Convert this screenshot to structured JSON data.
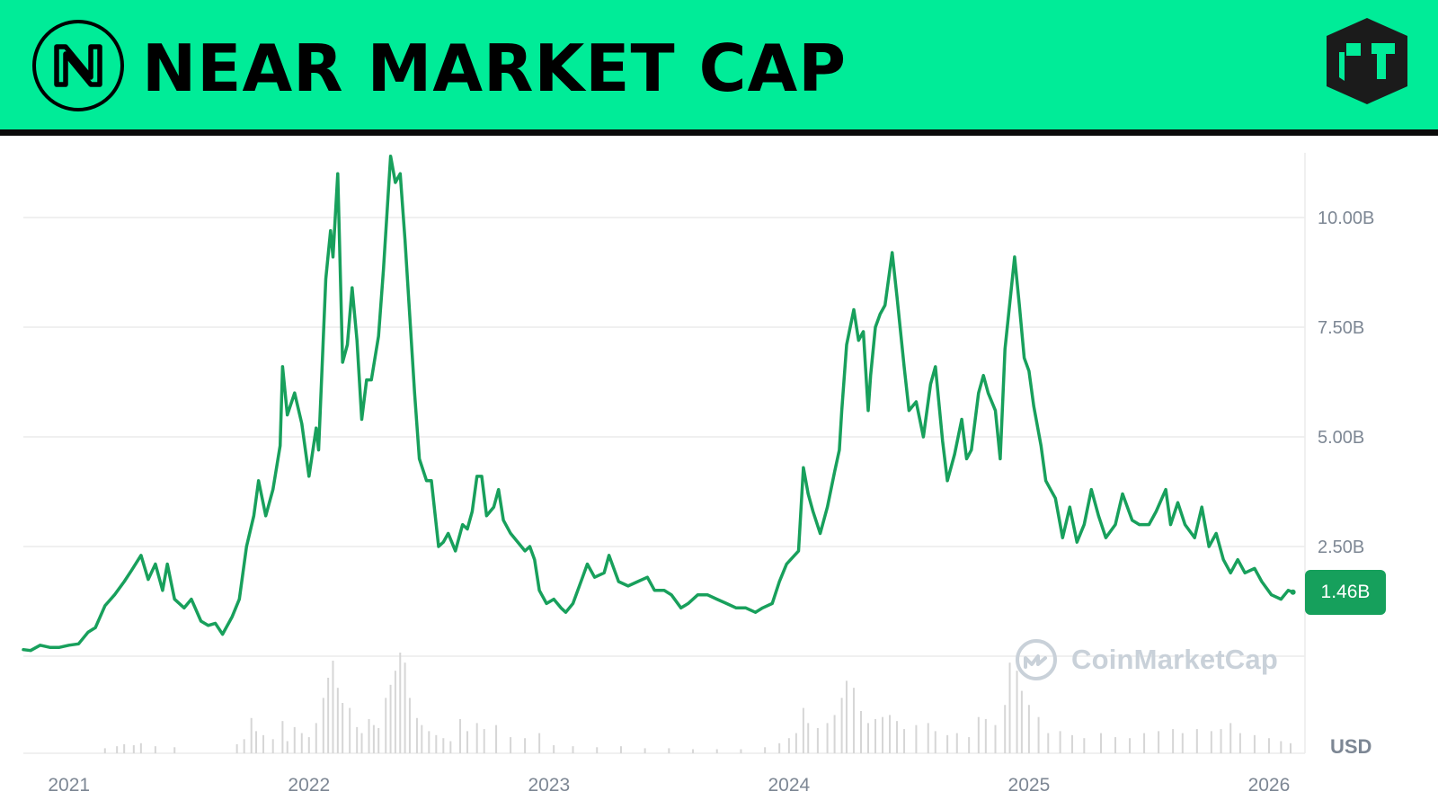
{
  "header": {
    "title": "NEAR MARKET CAP",
    "banner_color": "#00ec98",
    "left_logo_icon": "near-protocol-logo-icon",
    "right_logo_icon": "brand-cube-logo-icon"
  },
  "watermark": {
    "text": "CoinMarketCap",
    "icon": "coinmarketcap-logo-icon"
  },
  "current_value_label": "1.46B",
  "currency_label": "USD",
  "colors": {
    "line": "#18a05c",
    "badge": "#16a05c",
    "grid": "#ececec",
    "volume": "#d6d6d6",
    "tick_text": "#7d8794"
  },
  "chart_data": {
    "type": "line",
    "title": "NEAR MARKET CAP",
    "xlabel": "",
    "ylabel": "",
    "y_unit": "B USD",
    "grid": true,
    "y_axis_position": "right",
    "ylim": [
      0,
      12
    ],
    "yticks": [
      {
        "value": 2.5,
        "label": "2.50B"
      },
      {
        "value": 5.0,
        "label": "5.00B"
      },
      {
        "value": 7.5,
        "label": "7.50B"
      },
      {
        "value": 10.0,
        "label": "10.00B"
      }
    ],
    "xlim": [
      2020.81,
      2026.15
    ],
    "xticks": [
      {
        "value": 2021.0,
        "label": "2021"
      },
      {
        "value": 2022.0,
        "label": "2022"
      },
      {
        "value": 2023.0,
        "label": "2023"
      },
      {
        "value": 2024.0,
        "label": "2024"
      },
      {
        "value": 2025.0,
        "label": "2025"
      },
      {
        "value": 2026.0,
        "label": "2026"
      }
    ],
    "series": [
      {
        "values": [
          [
            2020.81,
            0.15
          ],
          [
            2020.84,
            0.13
          ],
          [
            2020.88,
            0.25
          ],
          [
            2020.92,
            0.2
          ],
          [
            2020.96,
            0.2
          ],
          [
            2021.0,
            0.25
          ],
          [
            2021.04,
            0.28
          ],
          [
            2021.08,
            0.55
          ],
          [
            2021.11,
            0.65
          ],
          [
            2021.15,
            1.15
          ],
          [
            2021.19,
            1.4
          ],
          [
            2021.23,
            1.7
          ],
          [
            2021.26,
            1.95
          ],
          [
            2021.3,
            2.3
          ],
          [
            2021.33,
            1.75
          ],
          [
            2021.36,
            2.1
          ],
          [
            2021.39,
            1.5
          ],
          [
            2021.41,
            2.1
          ],
          [
            2021.44,
            1.3
          ],
          [
            2021.48,
            1.1
          ],
          [
            2021.51,
            1.3
          ],
          [
            2021.55,
            0.8
          ],
          [
            2021.58,
            0.7
          ],
          [
            2021.61,
            0.75
          ],
          [
            2021.64,
            0.5
          ],
          [
            2021.68,
            0.9
          ],
          [
            2021.71,
            1.3
          ],
          [
            2021.74,
            2.5
          ],
          [
            2021.77,
            3.2
          ],
          [
            2021.79,
            4.0
          ],
          [
            2021.82,
            3.2
          ],
          [
            2021.85,
            3.8
          ],
          [
            2021.88,
            4.8
          ],
          [
            2021.89,
            6.6
          ],
          [
            2021.91,
            5.5
          ],
          [
            2021.94,
            6.0
          ],
          [
            2021.97,
            5.3
          ],
          [
            2022.0,
            4.1
          ],
          [
            2022.03,
            5.2
          ],
          [
            2022.04,
            4.7
          ],
          [
            2022.07,
            8.6
          ],
          [
            2022.09,
            9.7
          ],
          [
            2022.1,
            9.1
          ],
          [
            2022.12,
            11.0
          ],
          [
            2022.14,
            6.7
          ],
          [
            2022.16,
            7.1
          ],
          [
            2022.18,
            8.4
          ],
          [
            2022.2,
            7.2
          ],
          [
            2022.22,
            5.4
          ],
          [
            2022.24,
            6.3
          ],
          [
            2022.26,
            6.3
          ],
          [
            2022.29,
            7.3
          ],
          [
            2022.31,
            8.8
          ],
          [
            2022.34,
            11.4
          ],
          [
            2022.36,
            10.8
          ],
          [
            2022.38,
            11.0
          ],
          [
            2022.4,
            9.5
          ],
          [
            2022.44,
            6.0
          ],
          [
            2022.46,
            4.5
          ],
          [
            2022.49,
            4.0
          ],
          [
            2022.51,
            4.0
          ],
          [
            2022.54,
            2.5
          ],
          [
            2022.56,
            2.6
          ],
          [
            2022.58,
            2.8
          ],
          [
            2022.61,
            2.4
          ],
          [
            2022.64,
            3.0
          ],
          [
            2022.66,
            2.9
          ],
          [
            2022.68,
            3.3
          ],
          [
            2022.7,
            4.1
          ],
          [
            2022.72,
            4.1
          ],
          [
            2022.74,
            3.2
          ],
          [
            2022.77,
            3.4
          ],
          [
            2022.79,
            3.8
          ],
          [
            2022.81,
            3.1
          ],
          [
            2022.84,
            2.8
          ],
          [
            2022.87,
            2.6
          ],
          [
            2022.9,
            2.4
          ],
          [
            2022.92,
            2.5
          ],
          [
            2022.94,
            2.2
          ],
          [
            2022.96,
            1.5
          ],
          [
            2022.99,
            1.2
          ],
          [
            2023.02,
            1.3
          ],
          [
            2023.05,
            1.1
          ],
          [
            2023.07,
            1.0
          ],
          [
            2023.1,
            1.2
          ],
          [
            2023.14,
            1.8
          ],
          [
            2023.16,
            2.1
          ],
          [
            2023.19,
            1.8
          ],
          [
            2023.23,
            1.9
          ],
          [
            2023.25,
            2.3
          ],
          [
            2023.29,
            1.7
          ],
          [
            2023.33,
            1.6
          ],
          [
            2023.37,
            1.7
          ],
          [
            2023.41,
            1.8
          ],
          [
            2023.44,
            1.5
          ],
          [
            2023.48,
            1.5
          ],
          [
            2023.51,
            1.4
          ],
          [
            2023.55,
            1.1
          ],
          [
            2023.58,
            1.2
          ],
          [
            2023.62,
            1.4
          ],
          [
            2023.66,
            1.4
          ],
          [
            2023.7,
            1.3
          ],
          [
            2023.74,
            1.2
          ],
          [
            2023.78,
            1.1
          ],
          [
            2023.82,
            1.1
          ],
          [
            2023.86,
            1.0
          ],
          [
            2023.89,
            1.1
          ],
          [
            2023.93,
            1.2
          ],
          [
            2023.96,
            1.7
          ],
          [
            2023.99,
            2.1
          ],
          [
            2024.04,
            2.4
          ],
          [
            2024.06,
            4.3
          ],
          [
            2024.08,
            3.7
          ],
          [
            2024.1,
            3.3
          ],
          [
            2024.13,
            2.8
          ],
          [
            2024.16,
            3.4
          ],
          [
            2024.19,
            4.2
          ],
          [
            2024.21,
            4.7
          ],
          [
            2024.22,
            5.6
          ],
          [
            2024.24,
            7.1
          ],
          [
            2024.27,
            7.9
          ],
          [
            2024.29,
            7.2
          ],
          [
            2024.31,
            7.4
          ],
          [
            2024.33,
            5.6
          ],
          [
            2024.34,
            6.4
          ],
          [
            2024.36,
            7.5
          ],
          [
            2024.38,
            7.8
          ],
          [
            2024.4,
            8.0
          ],
          [
            2024.43,
            9.2
          ],
          [
            2024.45,
            8.2
          ],
          [
            2024.48,
            6.6
          ],
          [
            2024.5,
            5.6
          ],
          [
            2024.53,
            5.8
          ],
          [
            2024.56,
            5.0
          ],
          [
            2024.59,
            6.2
          ],
          [
            2024.61,
            6.6
          ],
          [
            2024.64,
            4.9
          ],
          [
            2024.66,
            4.0
          ],
          [
            2024.69,
            4.6
          ],
          [
            2024.72,
            5.4
          ],
          [
            2024.74,
            4.5
          ],
          [
            2024.76,
            4.7
          ],
          [
            2024.79,
            6.0
          ],
          [
            2024.81,
            6.4
          ],
          [
            2024.83,
            6.0
          ],
          [
            2024.86,
            5.6
          ],
          [
            2024.88,
            4.5
          ],
          [
            2024.9,
            7.0
          ],
          [
            2024.94,
            9.1
          ],
          [
            2024.96,
            8.0
          ],
          [
            2024.98,
            6.8
          ],
          [
            2025.0,
            6.5
          ],
          [
            2025.02,
            5.7
          ],
          [
            2025.05,
            4.8
          ],
          [
            2025.07,
            4.0
          ],
          [
            2025.09,
            3.8
          ],
          [
            2025.11,
            3.6
          ],
          [
            2025.14,
            2.7
          ],
          [
            2025.17,
            3.4
          ],
          [
            2025.2,
            2.6
          ],
          [
            2025.23,
            3.0
          ],
          [
            2025.26,
            3.8
          ],
          [
            2025.29,
            3.2
          ],
          [
            2025.32,
            2.7
          ],
          [
            2025.36,
            3.0
          ],
          [
            2025.39,
            3.7
          ],
          [
            2025.43,
            3.1
          ],
          [
            2025.46,
            3.0
          ],
          [
            2025.5,
            3.0
          ],
          [
            2025.53,
            3.3
          ],
          [
            2025.57,
            3.8
          ],
          [
            2025.59,
            3.0
          ],
          [
            2025.62,
            3.5
          ],
          [
            2025.65,
            3.0
          ],
          [
            2025.69,
            2.7
          ],
          [
            2025.72,
            3.4
          ],
          [
            2025.75,
            2.5
          ],
          [
            2025.78,
            2.8
          ],
          [
            2025.81,
            2.2
          ],
          [
            2025.84,
            1.9
          ],
          [
            2025.87,
            2.2
          ],
          [
            2025.9,
            1.9
          ],
          [
            2025.94,
            2.0
          ],
          [
            2025.97,
            1.7
          ],
          [
            2026.01,
            1.4
          ],
          [
            2026.05,
            1.3
          ],
          [
            2026.08,
            1.5
          ],
          [
            2026.1,
            1.46
          ]
        ]
      }
    ],
    "last_value": 1.46,
    "volume_bars": [
      [
        2021.15,
        0.05
      ],
      [
        2021.2,
        0.07
      ],
      [
        2021.23,
        0.09
      ],
      [
        2021.27,
        0.08
      ],
      [
        2021.3,
        0.1
      ],
      [
        2021.36,
        0.07
      ],
      [
        2021.44,
        0.06
      ],
      [
        2021.7,
        0.09
      ],
      [
        2021.73,
        0.14
      ],
      [
        2021.76,
        0.35
      ],
      [
        2021.78,
        0.22
      ],
      [
        2021.81,
        0.18
      ],
      [
        2021.85,
        0.14
      ],
      [
        2021.89,
        0.32
      ],
      [
        2021.91,
        0.12
      ],
      [
        2021.94,
        0.26
      ],
      [
        2021.97,
        0.2
      ],
      [
        2022.0,
        0.16
      ],
      [
        2022.03,
        0.3
      ],
      [
        2022.06,
        0.55
      ],
      [
        2022.08,
        0.75
      ],
      [
        2022.1,
        0.92
      ],
      [
        2022.12,
        0.65
      ],
      [
        2022.14,
        0.5
      ],
      [
        2022.17,
        0.45
      ],
      [
        2022.2,
        0.26
      ],
      [
        2022.22,
        0.2
      ],
      [
        2022.25,
        0.34
      ],
      [
        2022.27,
        0.28
      ],
      [
        2022.29,
        0.25
      ],
      [
        2022.32,
        0.55
      ],
      [
        2022.34,
        0.68
      ],
      [
        2022.36,
        0.82
      ],
      [
        2022.38,
        1.0
      ],
      [
        2022.4,
        0.9
      ],
      [
        2022.42,
        0.55
      ],
      [
        2022.45,
        0.35
      ],
      [
        2022.47,
        0.28
      ],
      [
        2022.5,
        0.22
      ],
      [
        2022.53,
        0.18
      ],
      [
        2022.56,
        0.15
      ],
      [
        2022.59,
        0.12
      ],
      [
        2022.63,
        0.34
      ],
      [
        2022.66,
        0.22
      ],
      [
        2022.7,
        0.3
      ],
      [
        2022.73,
        0.24
      ],
      [
        2022.78,
        0.28
      ],
      [
        2022.84,
        0.16
      ],
      [
        2022.9,
        0.15
      ],
      [
        2022.96,
        0.2
      ],
      [
        2023.02,
        0.08
      ],
      [
        2023.1,
        0.07
      ],
      [
        2023.2,
        0.06
      ],
      [
        2023.3,
        0.07
      ],
      [
        2023.4,
        0.05
      ],
      [
        2023.5,
        0.05
      ],
      [
        2023.6,
        0.04
      ],
      [
        2023.7,
        0.04
      ],
      [
        2023.8,
        0.04
      ],
      [
        2023.9,
        0.06
      ],
      [
        2023.96,
        0.1
      ],
      [
        2024.0,
        0.15
      ],
      [
        2024.03,
        0.2
      ],
      [
        2024.06,
        0.45
      ],
      [
        2024.08,
        0.3
      ],
      [
        2024.12,
        0.25
      ],
      [
        2024.16,
        0.3
      ],
      [
        2024.19,
        0.38
      ],
      [
        2024.22,
        0.55
      ],
      [
        2024.24,
        0.72
      ],
      [
        2024.27,
        0.65
      ],
      [
        2024.3,
        0.42
      ],
      [
        2024.33,
        0.3
      ],
      [
        2024.36,
        0.34
      ],
      [
        2024.39,
        0.36
      ],
      [
        2024.42,
        0.38
      ],
      [
        2024.45,
        0.32
      ],
      [
        2024.48,
        0.24
      ],
      [
        2024.53,
        0.28
      ],
      [
        2024.58,
        0.3
      ],
      [
        2024.61,
        0.22
      ],
      [
        2024.66,
        0.18
      ],
      [
        2024.7,
        0.2
      ],
      [
        2024.75,
        0.16
      ],
      [
        2024.79,
        0.36
      ],
      [
        2024.82,
        0.34
      ],
      [
        2024.86,
        0.28
      ],
      [
        2024.9,
        0.48
      ],
      [
        2024.92,
        0.9
      ],
      [
        2024.95,
        0.82
      ],
      [
        2024.97,
        0.62
      ],
      [
        2025.0,
        0.48
      ],
      [
        2025.04,
        0.36
      ],
      [
        2025.08,
        0.2
      ],
      [
        2025.13,
        0.22
      ],
      [
        2025.18,
        0.18
      ],
      [
        2025.23,
        0.15
      ],
      [
        2025.3,
        0.2
      ],
      [
        2025.36,
        0.16
      ],
      [
        2025.42,
        0.15
      ],
      [
        2025.48,
        0.2
      ],
      [
        2025.54,
        0.22
      ],
      [
        2025.6,
        0.24
      ],
      [
        2025.64,
        0.2
      ],
      [
        2025.7,
        0.24
      ],
      [
        2025.76,
        0.22
      ],
      [
        2025.8,
        0.24
      ],
      [
        2025.84,
        0.3
      ],
      [
        2025.88,
        0.2
      ],
      [
        2025.94,
        0.18
      ],
      [
        2026.0,
        0.15
      ],
      [
        2026.05,
        0.12
      ],
      [
        2026.09,
        0.1
      ]
    ]
  }
}
